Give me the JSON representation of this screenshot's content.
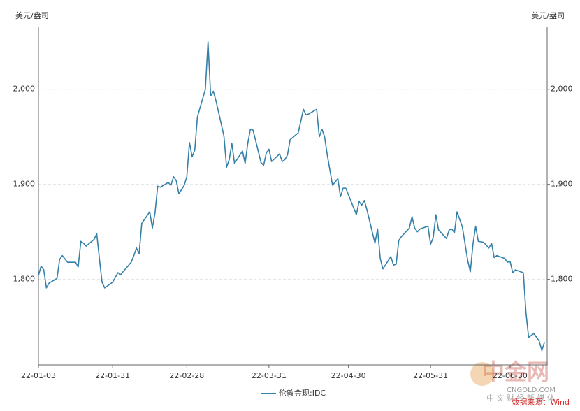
{
  "chart_data": {
    "type": "line",
    "y_label": "美元/盎司",
    "y2_label": "美元/盎司",
    "x": [
      "22-01-03",
      "22-01-04",
      "22-01-05",
      "22-01-06",
      "22-01-07",
      "22-01-10",
      "22-01-11",
      "22-01-12",
      "22-01-14",
      "22-01-17",
      "22-01-18",
      "22-01-19",
      "22-01-20",
      "22-01-21",
      "22-01-24",
      "22-01-25",
      "22-01-26",
      "22-01-27",
      "22-01-28",
      "22-01-31",
      "22-02-02",
      "22-02-03",
      "22-02-07",
      "22-02-08",
      "22-02-09",
      "22-02-10",
      "22-02-11",
      "22-02-14",
      "22-02-15",
      "22-02-16",
      "22-02-17",
      "22-02-18",
      "22-02-21",
      "22-02-22",
      "22-02-23",
      "22-02-24",
      "22-02-25",
      "22-02-27",
      "22-02-28",
      "22-03-01",
      "22-03-02",
      "22-03-03",
      "22-03-04",
      "22-03-07",
      "22-03-08",
      "22-03-09",
      "22-03-10",
      "22-03-11",
      "22-03-14",
      "22-03-15",
      "22-03-16",
      "22-03-17",
      "22-03-18",
      "22-03-21",
      "22-03-22",
      "22-03-23",
      "22-03-24",
      "22-03-25",
      "22-03-28",
      "22-03-29",
      "22-03-30",
      "22-03-31",
      "22-04-01",
      "22-04-04",
      "22-04-05",
      "22-04-06",
      "22-04-07",
      "22-04-08",
      "22-04-11",
      "22-04-12",
      "22-04-13",
      "22-04-14",
      "22-04-15",
      "22-04-18",
      "22-04-19",
      "22-04-20",
      "22-04-21",
      "22-04-22",
      "22-04-23",
      "22-04-24",
      "22-04-26",
      "22-04-27",
      "22-04-28",
      "22-04-29",
      "22-05-03",
      "22-05-04",
      "22-05-05",
      "22-05-06",
      "22-05-07",
      "22-05-10",
      "22-05-11",
      "22-05-12",
      "22-05-13",
      "22-05-16",
      "22-05-17",
      "22-05-18",
      "22-05-19",
      "22-05-20",
      "22-05-23",
      "22-05-24",
      "22-05-25",
      "22-05-26",
      "22-05-27",
      "22-05-30",
      "22-05-31",
      "22-06-01",
      "22-06-02",
      "22-06-03",
      "22-06-06",
      "22-06-07",
      "22-06-08",
      "22-06-09",
      "22-06-10",
      "22-06-12",
      "22-06-14",
      "22-06-15",
      "22-06-16",
      "22-06-17",
      "22-06-18",
      "22-06-20",
      "22-06-22",
      "22-06-23",
      "22-06-24",
      "22-06-25",
      "22-06-28",
      "22-06-29",
      "22-06-30",
      "22-07-01",
      "22-07-02",
      "22-07-05",
      "22-07-06",
      "22-07-07",
      "22-07-09",
      "22-07-11",
      "22-07-12",
      "22-07-13"
    ],
    "series": [
      {
        "name": "伦敦金现:IDC",
        "color": "#3580a8",
        "values": [
          1804,
          1814,
          1810,
          1791,
          1796,
          1801,
          1821,
          1825,
          1818,
          1818,
          1813,
          1840,
          1838,
          1835,
          1842,
          1848,
          1822,
          1797,
          1791,
          1797,
          1807,
          1805,
          1818,
          1825,
          1833,
          1827,
          1859,
          1871,
          1854,
          1870,
          1898,
          1897,
          1902,
          1899,
          1908,
          1904,
          1890,
          1899,
          1908,
          1944,
          1929,
          1936,
          1971,
          2000,
          2050,
          1993,
          1998,
          1988,
          1951,
          1918,
          1926,
          1943,
          1922,
          1935,
          1922,
          1943,
          1958,
          1957,
          1923,
          1920,
          1933,
          1937,
          1924,
          1932,
          1924,
          1926,
          1931,
          1947,
          1954,
          1966,
          1979,
          1973,
          1974,
          1979,
          1950,
          1958,
          1950,
          1931,
          1915,
          1899,
          1906,
          1887,
          1896,
          1896,
          1868,
          1882,
          1878,
          1883,
          1873,
          1838,
          1853,
          1822,
          1811,
          1824,
          1815,
          1816,
          1841,
          1845,
          1854,
          1866,
          1854,
          1850,
          1853,
          1856,
          1837,
          1844,
          1868,
          1852,
          1843,
          1852,
          1853,
          1849,
          1871,
          1855,
          1820,
          1808,
          1837,
          1856,
          1840,
          1839,
          1833,
          1838,
          1823,
          1825,
          1822,
          1818,
          1819,
          1807,
          1810,
          1807,
          1765,
          1739,
          1743,
          1735,
          1725,
          1734
        ]
      }
    ],
    "xlim": [
      "22-01-03",
      "22-07-14"
    ],
    "xticks": [
      "22-01-03",
      "22-01-31",
      "22-02-28",
      "22-03-31",
      "22-04-30",
      "22-05-31",
      "22-06-30"
    ],
    "ylim": [
      1710,
      2066
    ],
    "yticks": [
      {
        "value": 1800,
        "label": "1,800"
      },
      {
        "value": 1900,
        "label": "1,900"
      },
      {
        "value": 2000,
        "label": "2,000"
      }
    ],
    "y2lim": [
      1710,
      2066
    ],
    "y2ticks": [
      {
        "value": 1800,
        "label": "1,800"
      },
      {
        "value": 1900,
        "label": "1,900"
      },
      {
        "value": 2000,
        "label": "2,000"
      }
    ],
    "grid": true,
    "legend": "bottom",
    "source": "数据来源：Wind",
    "watermark": {
      "logo": "中金网",
      "site": "CNGOLD.COM",
      "slogan": "中 文 财 经 新 媒 体"
    }
  }
}
